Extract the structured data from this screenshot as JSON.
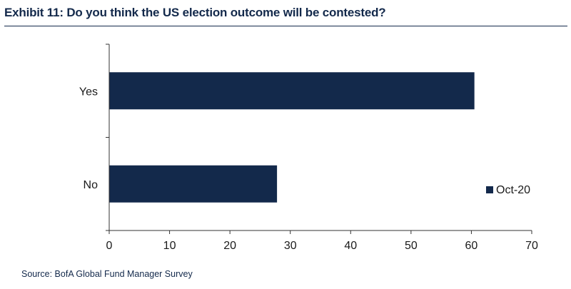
{
  "title": "Exhibit 11: Do you think the US election outcome will be contested?",
  "source": "Source: BofA Global Fund Manager Survey",
  "colors": {
    "bar": "#13294b",
    "title": "#13294b",
    "axis": "#333333"
  },
  "chart_data": {
    "type": "bar",
    "orientation": "horizontal",
    "categories": [
      "Yes",
      "No"
    ],
    "series": [
      {
        "name": "Oct-20",
        "values": [
          60.5,
          27.8
        ]
      }
    ],
    "xlim": [
      0,
      70
    ],
    "xticks": [
      0,
      10,
      20,
      30,
      40,
      50,
      60,
      70
    ],
    "xlabel": "",
    "ylabel": "",
    "grid": false,
    "legend": {
      "position": "right",
      "entries": [
        "Oct-20"
      ]
    }
  }
}
